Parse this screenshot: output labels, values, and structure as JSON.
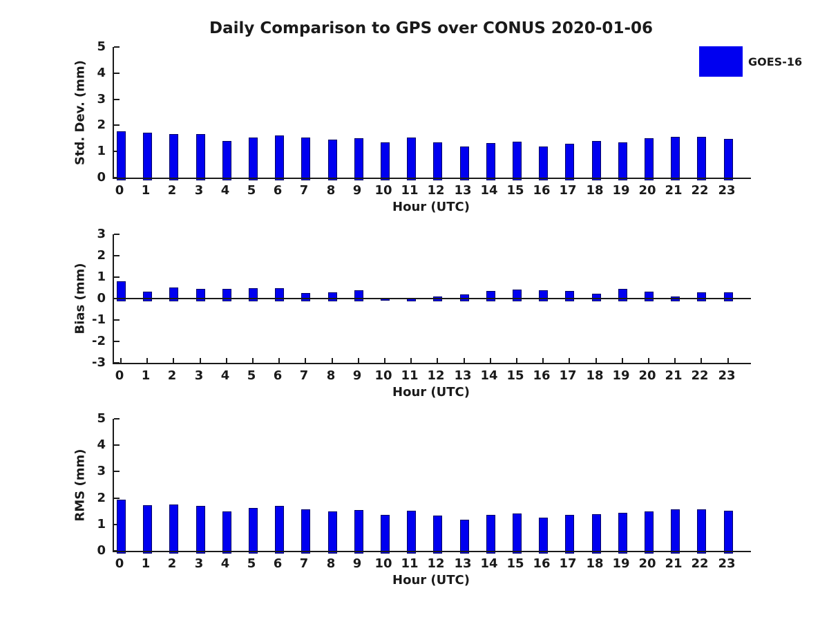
{
  "title": "Daily Comparison to GPS over CONUS 2020-01-06",
  "legend": {
    "label": "GOES-16",
    "position": "top-right"
  },
  "colors": {
    "bar_fill": "#0000F0",
    "bar_edge": "#000066",
    "axis": "#1A1A1A",
    "text": "#1A1A1A",
    "background": "#FFFFFF"
  },
  "chart_data": [
    {
      "type": "bar",
      "panel": "std_dev",
      "categories": [
        "0",
        "1",
        "2",
        "3",
        "4",
        "5",
        "6",
        "7",
        "8",
        "9",
        "10",
        "11",
        "12",
        "13",
        "14",
        "15",
        "16",
        "17",
        "18",
        "19",
        "20",
        "21",
        "22",
        "23"
      ],
      "series": [
        {
          "name": "GOES-16",
          "values": [
            1.77,
            1.73,
            1.67,
            1.67,
            1.41,
            1.54,
            1.62,
            1.53,
            1.45,
            1.51,
            1.35,
            1.53,
            1.34,
            1.18,
            1.31,
            1.37,
            1.2,
            1.3,
            1.39,
            1.36,
            1.5,
            1.57,
            1.57,
            1.49
          ]
        }
      ],
      "xlabel": "Hour (UTC)",
      "ylabel": "Std. Dev. (mm)",
      "ylim": [
        0,
        5
      ],
      "yticks": [
        0,
        1,
        2,
        3,
        4,
        5
      ],
      "grid": false
    },
    {
      "type": "bar",
      "panel": "bias",
      "categories": [
        "0",
        "1",
        "2",
        "3",
        "4",
        "5",
        "6",
        "7",
        "8",
        "9",
        "10",
        "11",
        "12",
        "13",
        "14",
        "15",
        "16",
        "17",
        "18",
        "19",
        "20",
        "21",
        "22",
        "23"
      ],
      "series": [
        {
          "name": "GOES-16",
          "values": [
            0.8,
            0.33,
            0.52,
            0.44,
            0.44,
            0.49,
            0.47,
            0.27,
            0.3,
            0.39,
            -0.05,
            -0.09,
            0.1,
            0.19,
            0.37,
            0.43,
            0.39,
            0.34,
            0.24,
            0.45,
            0.31,
            0.09,
            0.28,
            0.28
          ]
        }
      ],
      "xlabel": "Hour (UTC)",
      "ylabel": "Bias (mm)",
      "ylim": [
        -3,
        3
      ],
      "yticks": [
        -3,
        -2,
        -1,
        0,
        1,
        2,
        3
      ],
      "grid": false
    },
    {
      "type": "bar",
      "panel": "rms",
      "categories": [
        "0",
        "1",
        "2",
        "3",
        "4",
        "5",
        "6",
        "7",
        "8",
        "9",
        "10",
        "11",
        "12",
        "13",
        "14",
        "15",
        "16",
        "17",
        "18",
        "19",
        "20",
        "21",
        "22",
        "23"
      ],
      "series": [
        {
          "name": "GOES-16",
          "values": [
            1.95,
            1.74,
            1.76,
            1.71,
            1.48,
            1.63,
            1.69,
            1.56,
            1.5,
            1.54,
            1.35,
            1.53,
            1.34,
            1.19,
            1.37,
            1.42,
            1.25,
            1.35,
            1.39,
            1.43,
            1.5,
            1.56,
            1.58,
            1.52
          ]
        }
      ],
      "xlabel": "Hour (UTC)",
      "ylabel": "RMS (mm)",
      "ylim": [
        0,
        5
      ],
      "yticks": [
        0,
        1,
        2,
        3,
        4,
        5
      ],
      "grid": false
    }
  ]
}
